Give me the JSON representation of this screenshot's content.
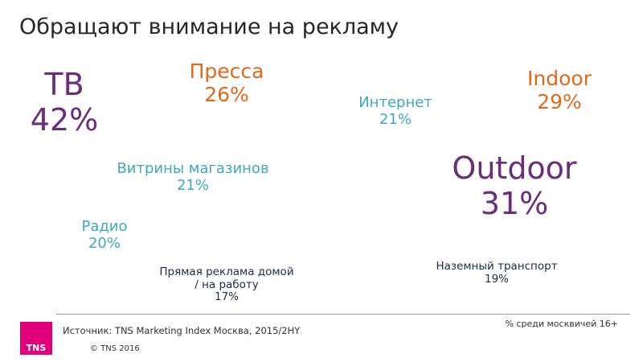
{
  "title": "Обращают внимание на рекламу",
  "items": {
    "tv": {
      "label": "ТВ",
      "value": "42%"
    },
    "press": {
      "label": "Пресса",
      "value": "26%"
    },
    "internet": {
      "label": "Интернет",
      "value": "21%"
    },
    "indoor": {
      "label": "Indoor",
      "value": "29%"
    },
    "shop_windows": {
      "label": "Витрины магазинов",
      "value": "21%"
    },
    "outdoor": {
      "label": "Outdoor",
      "value": "31%"
    },
    "radio": {
      "label": "Радио",
      "value": "20%"
    },
    "direct_mail": {
      "label_line1": "Прямая реклама домой",
      "label_line2": "/ на работу",
      "value": "17%"
    },
    "ground_transport": {
      "label": "Наземный транспорт",
      "value": "19%"
    }
  },
  "footer": {
    "logo": "TNS",
    "source": "Источник: TNS Marketing Index Москва, 2015/2HY",
    "copyright": "© TNS 2016",
    "note": "% среди москвичей 16+"
  },
  "colors": {
    "purple": "#6b2c7e",
    "orange": "#e06a1c",
    "teal": "#3fa9bd",
    "navy": "#1e2a4a",
    "brand": "#e0007a"
  }
}
